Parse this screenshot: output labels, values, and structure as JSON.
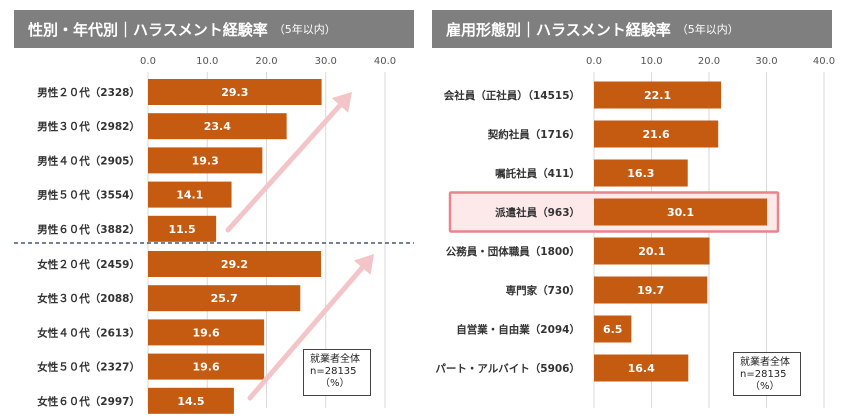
{
  "chart_data": [
    {
      "type": "bar",
      "orientation": "horizontal",
      "title": "性別・年代別｜ハラスメント経験率",
      "title_note": "（5年以内）",
      "categories": [
        "男性２０代（2328）",
        "男性３０代（2982）",
        "男性４０代（2905）",
        "男性５０代（3554）",
        "男性６０代（3882）",
        "女性２０代（2459）",
        "女性３０代（2088）",
        "女性４０代（2613）",
        "女性５０代（2327）",
        "女性６０代（2997）"
      ],
      "values": [
        29.3,
        23.4,
        19.3,
        14.1,
        11.5,
        29.2,
        25.7,
        19.6,
        19.6,
        14.5
      ],
      "xlim": [
        0,
        40
      ],
      "ticks": [
        "0.0",
        "10.0",
        "20.0",
        "30.0",
        "40.0"
      ],
      "grid": true,
      "note": [
        "就業者全体",
        "n=28135",
        "（%）"
      ]
    },
    {
      "type": "bar",
      "orientation": "horizontal",
      "title": "雇用形態別｜ハラスメント経験率",
      "title_note": "（5年以内）",
      "categories": [
        "会社員（正社員）（14515）",
        "契約社員（1716）",
        "嘱託社員（411）",
        "派遣社員（963）",
        "公務員・団体職員（1800）",
        "専門家（730）",
        "自営業・自由業（2094）",
        "パート・アルバイト（5906）"
      ],
      "values": [
        22.1,
        21.6,
        16.3,
        30.1,
        20.1,
        19.7,
        6.5,
        16.4
      ],
      "highlight": "派遣社員（963）",
      "xlim": [
        0,
        40
      ],
      "ticks": [
        "0.0",
        "10.0",
        "20.0",
        "30.0",
        "40.0"
      ],
      "grid": true,
      "note": [
        "就業者全体",
        "n=28135",
        "（%）"
      ]
    }
  ],
  "colors": {
    "bar": "#c55a11",
    "header": "#7f7f7f",
    "highlight": "#e8848b",
    "arrow": "#f3c5c8",
    "divider": "#1f3864"
  }
}
